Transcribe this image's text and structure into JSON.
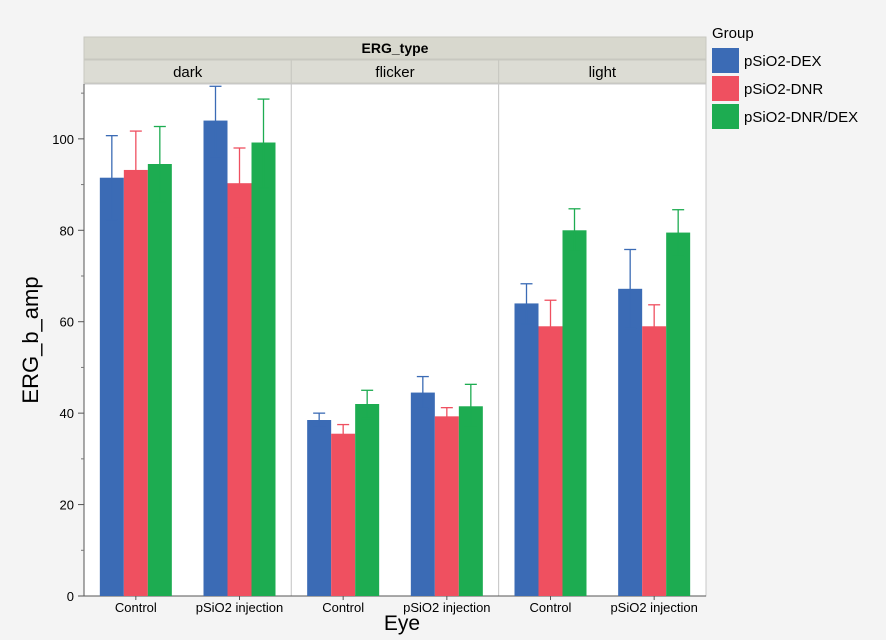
{
  "chart_data": {
    "type": "bar",
    "facet_title": "ERG_type",
    "facets": [
      "dark",
      "flicker",
      "light"
    ],
    "categories": [
      "Control",
      "pSiO2 injection"
    ],
    "xlabel": "Eye",
    "ylabel": "ERG_b_amp",
    "ylim": [
      0,
      112
    ],
    "yticks": [
      0,
      20,
      40,
      60,
      80,
      100
    ],
    "legend_title": "Group",
    "legend_position": "right",
    "series": [
      {
        "name": "pSiO2-DEX",
        "color": "#3b6bb5",
        "values": {
          "dark": [
            91.5,
            104
          ],
          "flicker": [
            38.5,
            44.5
          ],
          "light": [
            64,
            67.2
          ]
        },
        "errors": {
          "dark": [
            [
              82.3,
              100.7
            ],
            [
              96,
              111.5
            ]
          ],
          "flicker": [
            [
              37,
              40
            ],
            [
              41,
              48
            ]
          ],
          "light": [
            [
              59.5,
              68.3
            ],
            [
              58.5,
              75.8
            ]
          ]
        }
      },
      {
        "name": "pSiO2-DNR",
        "color": "#ef5060",
        "values": {
          "dark": [
            93.2,
            90.3
          ],
          "flicker": [
            35.5,
            39.3
          ],
          "light": [
            59,
            59
          ]
        },
        "errors": {
          "dark": [
            [
              84.5,
              101.7
            ],
            [
              82.7,
              98
            ]
          ],
          "flicker": [
            [
              33.2,
              37.5
            ],
            [
              37.3,
              41.2
            ]
          ],
          "light": [
            [
              53.2,
              64.7
            ],
            [
              54.3,
              63.7
            ]
          ]
        }
      },
      {
        "name": "pSiO2-DNR/DEX",
        "color": "#1dac51",
        "values": {
          "dark": [
            94.5,
            99.2
          ],
          "flicker": [
            42,
            41.5
          ],
          "light": [
            80,
            79.5
          ]
        },
        "errors": {
          "dark": [
            [
              86.2,
              102.7
            ],
            [
              89.3,
              108.7
            ]
          ],
          "flicker": [
            [
              38.8,
              45
            ],
            [
              37,
              46.3
            ]
          ],
          "light": [
            [
              75.5,
              84.7
            ],
            [
              74.3,
              84.5
            ]
          ]
        }
      }
    ]
  }
}
